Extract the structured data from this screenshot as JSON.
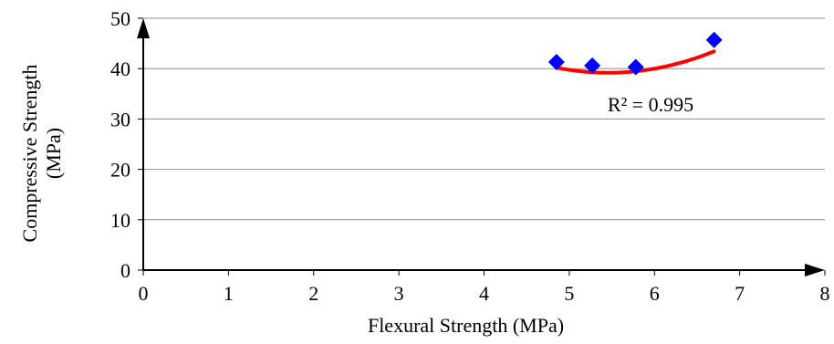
{
  "chart_data": {
    "type": "scatter",
    "xlabel": "Flexural Strength (MPa)",
    "ylabel": [
      "Compressive Strength",
      "(MPa)"
    ],
    "xlim": [
      0,
      8
    ],
    "ylim": [
      0,
      50
    ],
    "x_ticks": [
      0,
      1,
      2,
      3,
      4,
      5,
      6,
      7,
      8
    ],
    "y_ticks": [
      0,
      10,
      20,
      30,
      40,
      50
    ],
    "grid": "horizontal",
    "series": [
      {
        "points": [
          {
            "x": 4.85,
            "y": 41.3
          },
          {
            "x": 5.27,
            "y": 40.6
          },
          {
            "x": 5.78,
            "y": 40.3
          },
          {
            "x": 6.7,
            "y": 45.7
          }
        ],
        "marker": "diamond",
        "color": "#0000ff"
      }
    ],
    "trendline": {
      "type": "polynomial-2",
      "color": "#ff0000",
      "x_range": [
        4.85,
        6.7
      ],
      "coefficients": [
        120.93,
        -29.96,
        2.745
      ]
    },
    "annotations": [
      {
        "text": "R² = 0.995",
        "x": 5.45,
        "y": 33.0
      }
    ]
  }
}
